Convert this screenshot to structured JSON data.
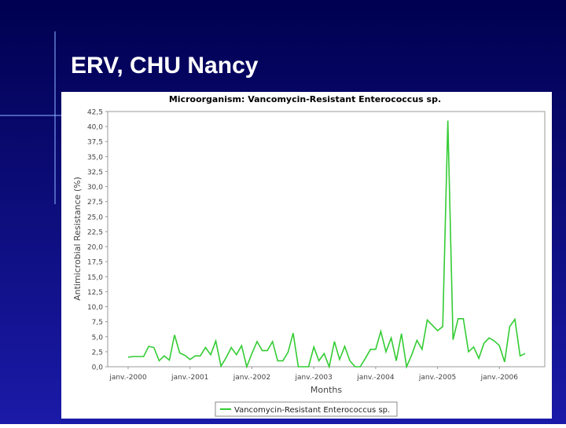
{
  "slide": {
    "title": "ERV, CHU Nancy"
  },
  "chart_data": {
    "type": "line",
    "title": "Microorganism: Vancomycin-Resistant Enterococcus sp.",
    "x_label": "Months",
    "y_label": "Antimicrobial Resistance (%)",
    "categories": [
      "janv.-2000",
      null,
      null,
      null,
      null,
      null,
      null,
      null,
      null,
      null,
      null,
      null,
      "janv.-2001",
      null,
      null,
      null,
      null,
      null,
      null,
      null,
      null,
      null,
      null,
      null,
      "janv.-2002",
      null,
      null,
      null,
      null,
      null,
      null,
      null,
      null,
      null,
      null,
      null,
      "janv.-2003",
      null,
      null,
      null,
      null,
      null,
      null,
      null,
      null,
      null,
      null,
      null,
      "janv.-2004",
      null,
      null,
      null,
      null,
      null,
      null,
      null,
      null,
      null,
      null,
      null,
      "janv.-2005",
      null,
      null,
      null,
      null,
      null,
      null,
      null,
      null,
      null,
      null,
      null,
      "janv.-2006",
      null,
      null,
      null,
      null,
      null
    ],
    "series": [
      {
        "name": "Vancomycin-Resistant Enterococcus sp.",
        "color": "#33cc33",
        "values": [
          1.6,
          1.7,
          1.7,
          1.7,
          3.4,
          3.2,
          1.0,
          1.8,
          1.1,
          5.3,
          2.3,
          1.9,
          1.2,
          1.8,
          1.8,
          3.2,
          2.0,
          4.3,
          0.1,
          1.5,
          3.2,
          2.0,
          3.5,
          0.0,
          2.2,
          4.2,
          2.7,
          2.7,
          4.2,
          1.0,
          1.0,
          2.4,
          5.6,
          0.0,
          0.0,
          0.0,
          3.3,
          1.0,
          2.2,
          0.0,
          4.2,
          1.2,
          3.4,
          1.0,
          0.0,
          0.0,
          1.4,
          2.9,
          2.9,
          5.9,
          2.5,
          4.8,
          1.0,
          5.5,
          0.0,
          2.0,
          4.4,
          2.9,
          7.8,
          6.9,
          6.0,
          6.7,
          41.0,
          4.5,
          8.0,
          8.0,
          2.5,
          3.3,
          1.4,
          3.9,
          4.8,
          4.3,
          3.5,
          0.8,
          6.7,
          7.9,
          1.8,
          2.2
        ]
      }
    ],
    "ylim": [
      0,
      42.5
    ],
    "yticks": [
      {
        "value": 0,
        "label": "0,0"
      },
      {
        "value": 2.5,
        "label": "2,5"
      },
      {
        "value": 5,
        "label": "5,0"
      },
      {
        "value": 7.5,
        "label": "7,5"
      },
      {
        "value": 10,
        "label": "10,0"
      },
      {
        "value": 12.5,
        "label": "12,5"
      },
      {
        "value": 15,
        "label": "15,0"
      },
      {
        "value": 17.5,
        "label": "17,5"
      },
      {
        "value": 20,
        "label": "20,0"
      },
      {
        "value": 22.5,
        "label": "22,5"
      },
      {
        "value": 25,
        "label": "25,0"
      },
      {
        "value": 27.5,
        "label": "27,5"
      },
      {
        "value": 30,
        "label": "30,0"
      },
      {
        "value": 32.5,
        "label": "32,5"
      },
      {
        "value": 35,
        "label": "35,0"
      },
      {
        "value": 37.5,
        "label": "37,5"
      },
      {
        "value": 40,
        "label": "40,0"
      },
      {
        "value": 42.5,
        "label": "42,5"
      }
    ],
    "grid": false
  }
}
